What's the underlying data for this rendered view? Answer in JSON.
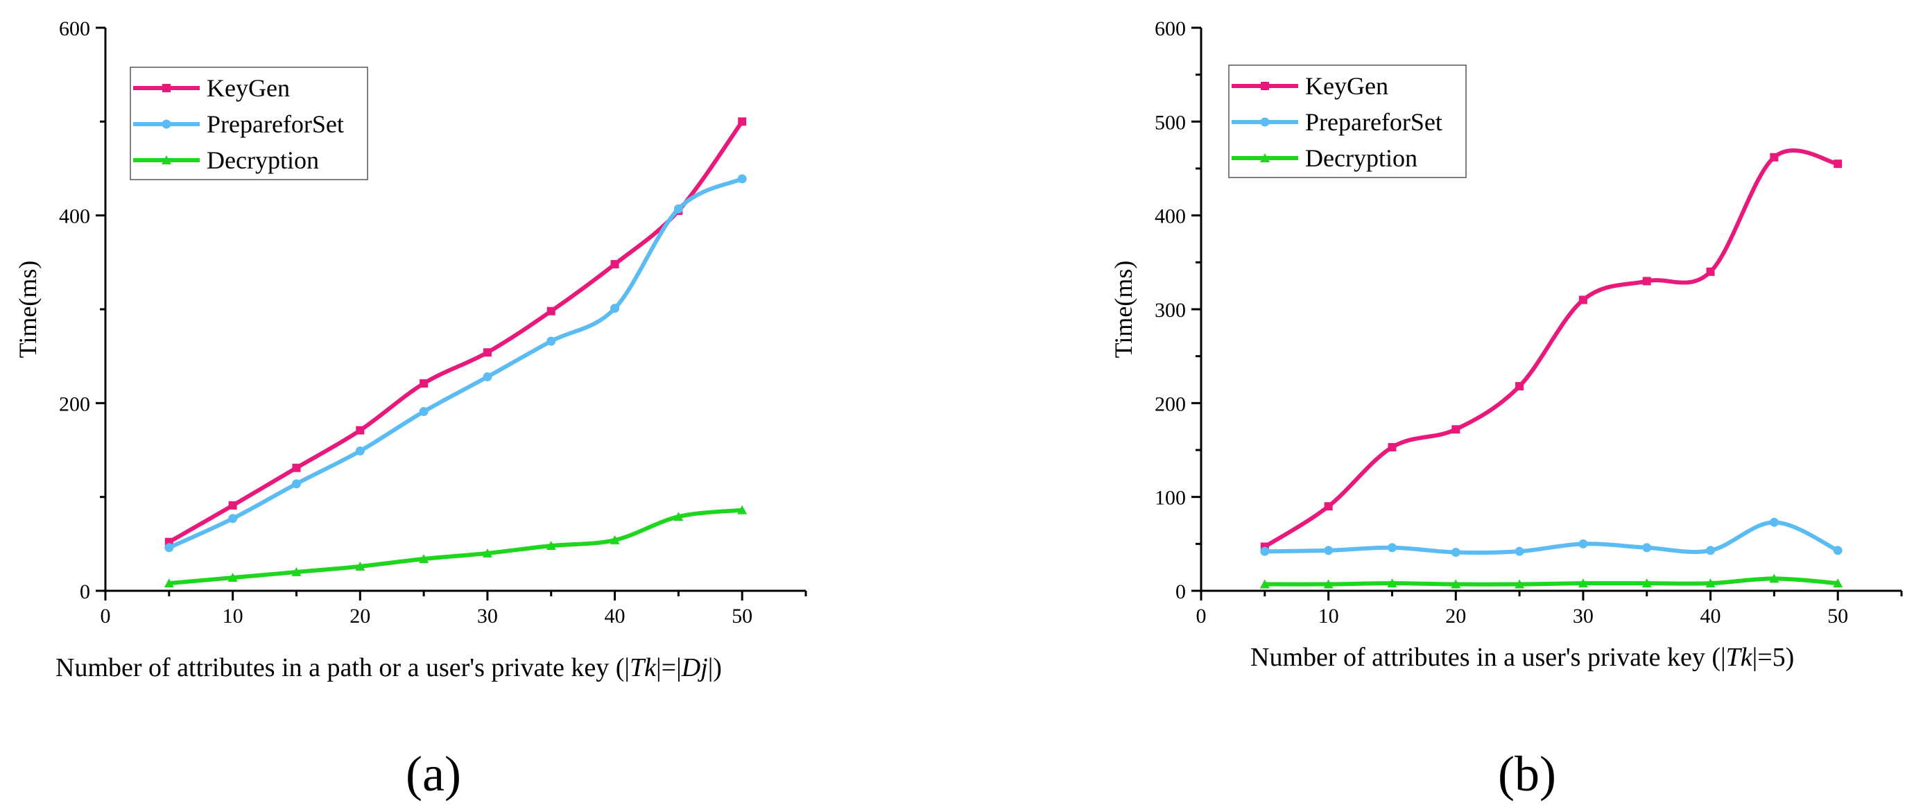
{
  "chart_data": [
    {
      "type": "line",
      "panel_label": "(a)",
      "xlabel_parts": [
        {
          "text": "Number of attributes in a path or a user's private key",
          "style": "normal"
        },
        {
          "text": "   (|",
          "style": "normal"
        },
        {
          "text": "Tk",
          "style": "italic"
        },
        {
          "text": "|=|",
          "style": "normal"
        },
        {
          "text": "Dj",
          "style": "italic"
        },
        {
          "text": "|)",
          "style": "normal"
        }
      ],
      "ylabel": "Time(ms)",
      "xlim": [
        0,
        55
      ],
      "ylim": [
        0,
        600
      ],
      "xticks": [
        0,
        10,
        20,
        30,
        40,
        50
      ],
      "yticks": [
        0,
        200,
        400,
        600
      ],
      "legend_position": "top-left",
      "x": [
        5,
        10,
        15,
        20,
        25,
        30,
        35,
        40,
        45,
        50
      ],
      "series": [
        {
          "name": "KeyGen",
          "color": "#e8197a",
          "marker": "square",
          "values": [
            52,
            91,
            131,
            171,
            221,
            254,
            298,
            348,
            405,
            500
          ]
        },
        {
          "name": "PrepareforSet",
          "color": "#5bbcf3",
          "marker": "circle",
          "values": [
            46,
            77,
            114,
            149,
            191,
            228,
            266,
            301,
            407,
            439
          ]
        },
        {
          "name": "Decryption",
          "color": "#1ed61e",
          "marker": "triangle",
          "values": [
            8,
            14,
            20,
            26,
            34,
            40,
            48,
            54,
            79,
            86
          ]
        }
      ]
    },
    {
      "type": "line",
      "panel_label": "(b)",
      "xlabel_parts": [
        {
          "text": "Number of attributes in a user's private key",
          "style": "normal"
        },
        {
          "text": "   (|",
          "style": "normal"
        },
        {
          "text": "Tk",
          "style": "italic"
        },
        {
          "text": "|=5)",
          "style": "normal"
        }
      ],
      "ylabel": "Time(ms)",
      "xlim": [
        0,
        55
      ],
      "ylim": [
        0,
        600
      ],
      "xticks": [
        0,
        10,
        20,
        30,
        40,
        50
      ],
      "yticks": [
        0,
        100,
        200,
        300,
        400,
        500,
        600
      ],
      "legend_position": "top-left",
      "x": [
        5,
        10,
        15,
        20,
        25,
        30,
        35,
        40,
        45,
        50
      ],
      "series": [
        {
          "name": "KeyGen",
          "color": "#e8197a",
          "marker": "square",
          "values": [
            47,
            90,
            153,
            172,
            218,
            310,
            330,
            340,
            462,
            455
          ]
        },
        {
          "name": "PrepareforSet",
          "color": "#5bbcf3",
          "marker": "circle",
          "values": [
            42,
            43,
            46,
            41,
            42,
            50,
            46,
            43,
            73,
            43
          ]
        },
        {
          "name": "Decryption",
          "color": "#1ed61e",
          "marker": "triangle",
          "values": [
            7,
            7,
            8,
            7,
            7,
            8,
            8,
            8,
            13,
            8
          ]
        }
      ]
    }
  ]
}
